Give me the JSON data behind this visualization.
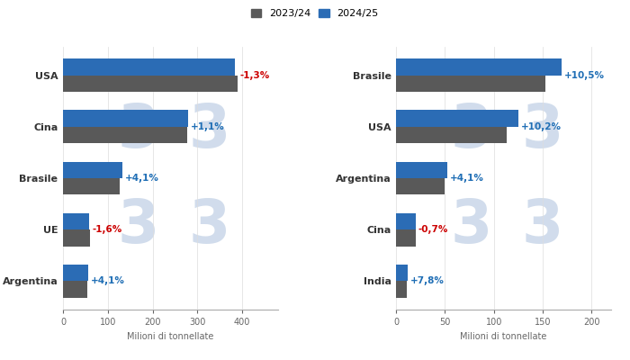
{
  "corn": {
    "categories": [
      "USA",
      "Cina",
      "Brasile",
      "UE",
      "Argentina"
    ],
    "values_2324": [
      389,
      277,
      127,
      60,
      55
    ],
    "values_2425": [
      384,
      280,
      132,
      59,
      57
    ],
    "pct_labels": [
      "-1,3%",
      "+1,1%",
      "+4,1%",
      "-1,6%",
      "+4,1%"
    ],
    "pct_colors": [
      "#cc0000",
      "#1f6eb5",
      "#1f6eb5",
      "#cc0000",
      "#1f6eb5"
    ],
    "xlabel": "Milioni di tonnellate",
    "xlim": [
      0,
      480
    ],
    "xticks": [
      0,
      100,
      200,
      300,
      400
    ]
  },
  "soy": {
    "categories": [
      "Brasile",
      "USA",
      "Argentina",
      "Cina",
      "India"
    ],
    "values_2324": [
      153,
      113,
      50,
      20,
      11
    ],
    "values_2425": [
      169,
      125,
      52,
      20,
      12
    ],
    "pct_labels": [
      "+10,5%",
      "+10,2%",
      "+4,1%",
      "-0,7%",
      "+7,8%"
    ],
    "pct_colors": [
      "#1f6eb5",
      "#1f6eb5",
      "#1f6eb5",
      "#cc0000",
      "#1f6eb5"
    ],
    "xlabel": "Milioni di tonnellate",
    "xlim": [
      0,
      220
    ],
    "xticks": [
      0,
      50,
      100,
      150,
      200
    ]
  },
  "color_2324": "#595959",
  "color_2425": "#2b6cb5",
  "legend_label_2324": "2023/24",
  "legend_label_2425": "2024/25",
  "bg_color": "#ffffff",
  "watermark_color": "#ccd9ea",
  "bar_height": 0.32
}
